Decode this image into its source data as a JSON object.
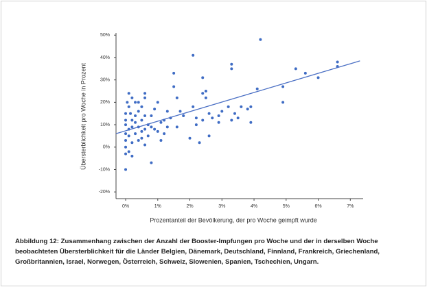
{
  "chart_data": {
    "type": "scatter",
    "x_label": "Prozentanteil der Bevölkerung, der pro Woche geimpft wurde",
    "y_label": "Übersterblichkeit pro Woche in Prozent",
    "caption": "Abbildung 12: Zusammenhang zwischen der Anzahl der Booster-Impfungen pro Woche und der in derselben Woche beobachteten Übersterblichkeit für die Länder Belgien, Dänemark, Deutschland, Finnland, Frankreich, Griechenland, Großbritannien, Israel, Norwegen, Österreich, Schweiz, Slowenien, Spanien, Tschechien, Ungarn.",
    "color": "#3f6cc4",
    "x": [
      2.1,
      3.3,
      3.3,
      4.2,
      4.1,
      5.3,
      5.6,
      6.0,
      6.6,
      6.6,
      4.9,
      4.9,
      3.2,
      3.4,
      3.6,
      3.8,
      3.9,
      3.9,
      3.5,
      3.3,
      2.9,
      2.9,
      2.6,
      2.6,
      2.3,
      2.2,
      2.4,
      2.5,
      2.5,
      2.4,
      2.4,
      2.2,
      2.0,
      2.1,
      1.7,
      1.5,
      1.5,
      1.6,
      1.3,
      1.2,
      1.4,
      1.1,
      1.0,
      0.9,
      0.8,
      0.9,
      1.0,
      1.1,
      0.8,
      0.6,
      0.6,
      0.5,
      0.4,
      0.3,
      0.2,
      0.1,
      0.1,
      0.0,
      0.0,
      0.0,
      0.0,
      0.0,
      0.0,
      0.0,
      0.0,
      0.1,
      0.1,
      0.2,
      0.2,
      0.2,
      0.3,
      0.3,
      0.4,
      0.4,
      0.5,
      0.5,
      0.6,
      0.6,
      0.7,
      0.7,
      0.1,
      0.2,
      0.3,
      0.4,
      0.5,
      0.6,
      0.8,
      1.2,
      1.3,
      1.6,
      1.8,
      2.7,
      3.0,
      0.05,
      0.15
    ],
    "y": [
      41,
      37,
      35,
      48,
      26,
      35,
      33,
      31,
      38,
      36,
      27,
      20,
      18,
      15,
      18,
      17,
      18,
      11,
      13,
      12,
      14,
      11,
      15,
      5,
      2,
      10,
      12,
      25,
      22,
      31,
      24,
      13,
      4,
      18,
      16,
      33,
      27,
      22,
      16,
      12,
      13,
      11,
      20,
      17,
      14,
      8,
      7,
      3,
      -7,
      24,
      22,
      18,
      16,
      20,
      22,
      24,
      18,
      15,
      12,
      10,
      6,
      3,
      0,
      -3,
      -10,
      8,
      5,
      12,
      9,
      2,
      6,
      11,
      9,
      3,
      7,
      12,
      8,
      14,
      10,
      5,
      -2,
      -4,
      14,
      20,
      4,
      1,
      9,
      6,
      9,
      9,
      14,
      13,
      16,
      20,
      15
    ],
    "trendline": {
      "x": [
        -0.3,
        7.3
      ],
      "y": [
        6,
        38.5
      ],
      "color": "#4a6fc4"
    },
    "xlim": [
      -0.3,
      7.4
    ],
    "ylim": [
      -23,
      51
    ],
    "xticks": [
      {
        "value": 0,
        "label": "0%"
      },
      {
        "value": 1,
        "label": "1%"
      },
      {
        "value": 2,
        "label": "2%"
      },
      {
        "value": 3,
        "label": "3%"
      },
      {
        "value": 4,
        "label": "4%"
      },
      {
        "value": 5,
        "label": "5%"
      },
      {
        "value": 6,
        "label": "6%"
      },
      {
        "value": 7,
        "label": "7%"
      }
    ],
    "yticks": [
      {
        "value": -20,
        "label": "-20%"
      },
      {
        "value": -10,
        "label": "-10%"
      },
      {
        "value": 0,
        "label": "0%"
      },
      {
        "value": 10,
        "label": "10%"
      },
      {
        "value": 20,
        "label": "20%"
      },
      {
        "value": 30,
        "label": "30%"
      },
      {
        "value": 40,
        "label": "40%"
      },
      {
        "value": 50,
        "label": "50%"
      }
    ]
  }
}
